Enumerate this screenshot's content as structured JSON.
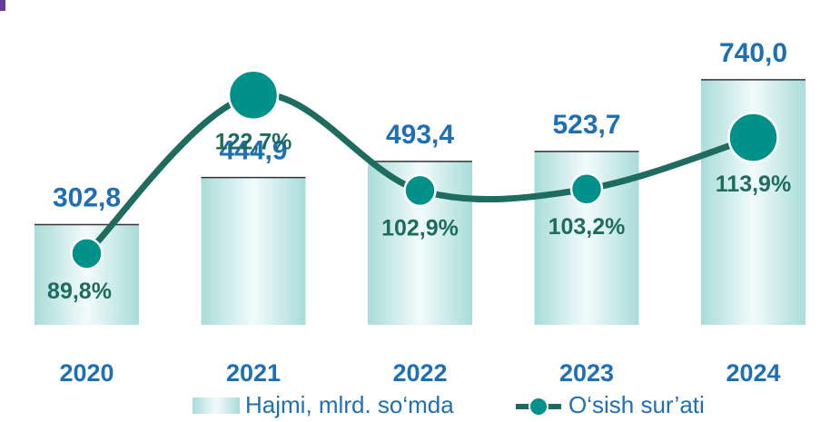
{
  "chart_data": {
    "type": "bar_line",
    "categories": [
      "2020",
      "2021",
      "2022",
      "2023",
      "2024"
    ],
    "series": [
      {
        "name": "Hajmi, mlrd. so‘mda",
        "type": "bar",
        "color": "#bfe6e4",
        "values": [
          302.8,
          444.9,
          493.4,
          523.7,
          740.0
        ],
        "value_labels": [
          "302,8",
          "444,9",
          "493,4",
          "523,7",
          "740,0"
        ]
      },
      {
        "name": "O‘sish sur’ati",
        "type": "line",
        "axis": "y2",
        "color": "#1e6b5f",
        "marker_color": "#00918a",
        "values": [
          89.8,
          122.7,
          102.9,
          103.2,
          113.9
        ],
        "value_labels": [
          "89,8%",
          "122,7%",
          "102,9%",
          "103,2%",
          "113,9%"
        ]
      }
    ],
    "ylim": [
      0,
      800
    ],
    "y2lim": [
      75,
      130
    ]
  }
}
